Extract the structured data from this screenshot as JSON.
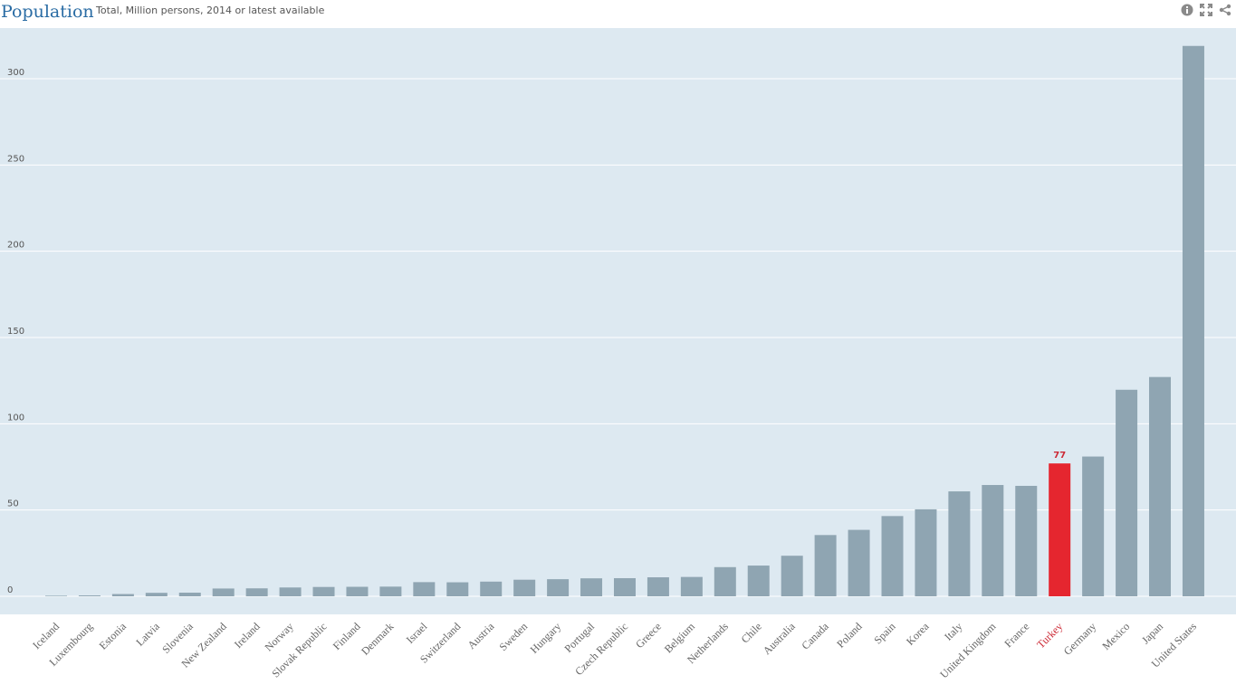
{
  "header": {
    "title": "Population",
    "subtitle": "Total, Million persons, 2014 or latest available"
  },
  "toolbar": {
    "info_icon": "info-icon",
    "expand_icon": "expand-icon",
    "share_icon": "share-icon"
  },
  "colors": {
    "plot_background": "#dde9f1",
    "bar": "#8fa5b2",
    "highlight": "#e5262f",
    "highlight_label": "#cc2a36",
    "tick_label": "#555555",
    "category_label": "#666666"
  },
  "chart_data": {
    "type": "bar",
    "title": "Population",
    "subtitle": "Total, Million persons, 2014 or latest available",
    "xlabel": "",
    "ylabel": "",
    "ylim": [
      0,
      320
    ],
    "yticks": [
      0,
      50,
      100,
      150,
      200,
      250,
      300
    ],
    "grid": true,
    "highlight_category": "Turkey",
    "highlight_label": "77",
    "categories": [
      "Iceland",
      "Luxembourg",
      "Estonia",
      "Latvia",
      "Slovenia",
      "New Zealand",
      "Ireland",
      "Norway",
      "Slovak Republic",
      "Finland",
      "Denmark",
      "Israel",
      "Switzerland",
      "Austria",
      "Sweden",
      "Hungary",
      "Portugal",
      "Czech Republic",
      "Greece",
      "Belgium",
      "Netherlands",
      "Chile",
      "Australia",
      "Canada",
      "Poland",
      "Spain",
      "Korea",
      "Italy",
      "United Kingdom",
      "France",
      "Turkey",
      "Germany",
      "Mexico",
      "Japan",
      "United States"
    ],
    "values": [
      0.3,
      0.5,
      1.3,
      2.0,
      2.1,
      4.5,
      4.6,
      5.1,
      5.4,
      5.5,
      5.6,
      8.2,
      8.1,
      8.5,
      9.6,
      9.9,
      10.4,
      10.5,
      11.0,
      11.2,
      16.9,
      17.8,
      23.5,
      35.5,
      38.5,
      46.5,
      50.4,
      60.8,
      64.5,
      64.0,
      77,
      81.0,
      119.7,
      127.1,
      319.0
    ]
  }
}
